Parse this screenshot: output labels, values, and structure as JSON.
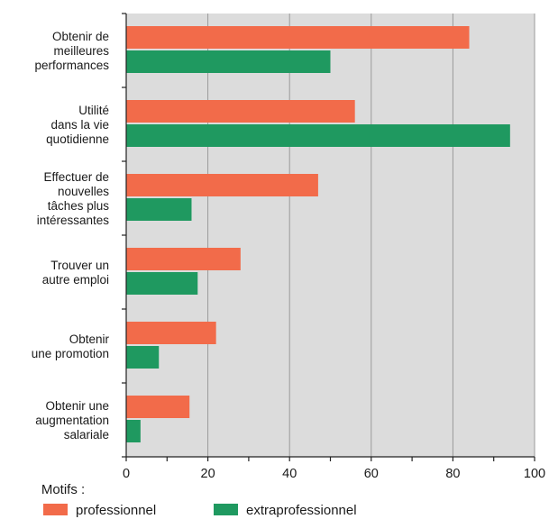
{
  "chart_data": {
    "type": "bar",
    "orientation": "horizontal",
    "categories": [
      [
        "Obtenir de",
        "meilleures",
        "performances"
      ],
      [
        "Utilité",
        "dans la vie",
        "quotidienne"
      ],
      [
        "Effectuer de",
        "nouvelles",
        "tâches plus",
        "intéressantes"
      ],
      [
        "Trouver un",
        "autre emploi"
      ],
      [
        "Obtenir",
        "une promotion"
      ],
      [
        "Obtenir une",
        "augmentation",
        "salariale"
      ]
    ],
    "series": [
      {
        "name": "professionnel",
        "color": "#f26b4a",
        "values": [
          84,
          56,
          47,
          28,
          22,
          15.5
        ]
      },
      {
        "name": "extraprofessionnel",
        "color": "#1f9960",
        "values": [
          50,
          94,
          16,
          17.5,
          8,
          3.5
        ]
      }
    ],
    "xlim": [
      0,
      100
    ],
    "xticks": [
      "0",
      "20",
      "40",
      "60",
      "80",
      "100"
    ],
    "grid": true,
    "legend_title": "Motifs :",
    "legend_position": "bottom-left"
  }
}
